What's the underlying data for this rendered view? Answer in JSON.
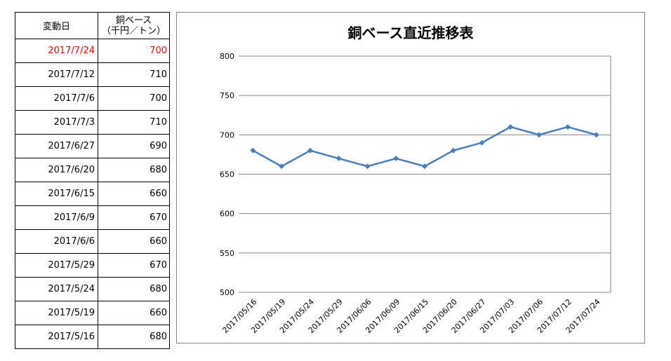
{
  "table": {
    "header_date": "変動日",
    "header_price_line1": "銅ベース",
    "header_price_line2": "（千円／トン）",
    "rows": [
      {
        "date": "2017/7/24",
        "price": "700"
      },
      {
        "date": "2017/7/12",
        "price": "710"
      },
      {
        "date": "2017/7/6",
        "price": "700"
      },
      {
        "date": "2017/7/3",
        "price": "710"
      },
      {
        "date": "2017/6/27",
        "price": "690"
      },
      {
        "date": "2017/6/20",
        "price": "680"
      },
      {
        "date": "2017/6/15",
        "price": "660"
      },
      {
        "date": "2017/6/9",
        "price": "670"
      },
      {
        "date": "2017/6/6",
        "price": "660"
      },
      {
        "date": "2017/5/29",
        "price": "670"
      },
      {
        "date": "2017/5/24",
        "price": "680"
      },
      {
        "date": "2017/5/19",
        "price": "660"
      },
      {
        "date": "2017/5/16",
        "price": "680"
      }
    ]
  },
  "colors": {
    "series": "#4a7ebb",
    "latest_row": "#ff0000",
    "gridline": "#868686"
  },
  "chart_data": {
    "type": "line",
    "title": "銅ベース直近推移表",
    "xlabel": "",
    "ylabel": "",
    "categories": [
      "2017/05/16",
      "2017/05/19",
      "2017/05/24",
      "2017/05/29",
      "2017/06/06",
      "2017/06/09",
      "2017/06/15",
      "2017/06/20",
      "2017/06/27",
      "2017/07/03",
      "2017/07/06",
      "2017/07/12",
      "2017/07/24"
    ],
    "series": [
      {
        "values": [
          680,
          660,
          680,
          670,
          660,
          670,
          660,
          680,
          690,
          710,
          700,
          710,
          700
        ]
      }
    ],
    "ylim": [
      500,
      800
    ],
    "yticks": [
      "500",
      "550",
      "600",
      "650",
      "700",
      "750",
      "800"
    ],
    "grid": true,
    "legend": "none",
    "marker": "diamond"
  }
}
